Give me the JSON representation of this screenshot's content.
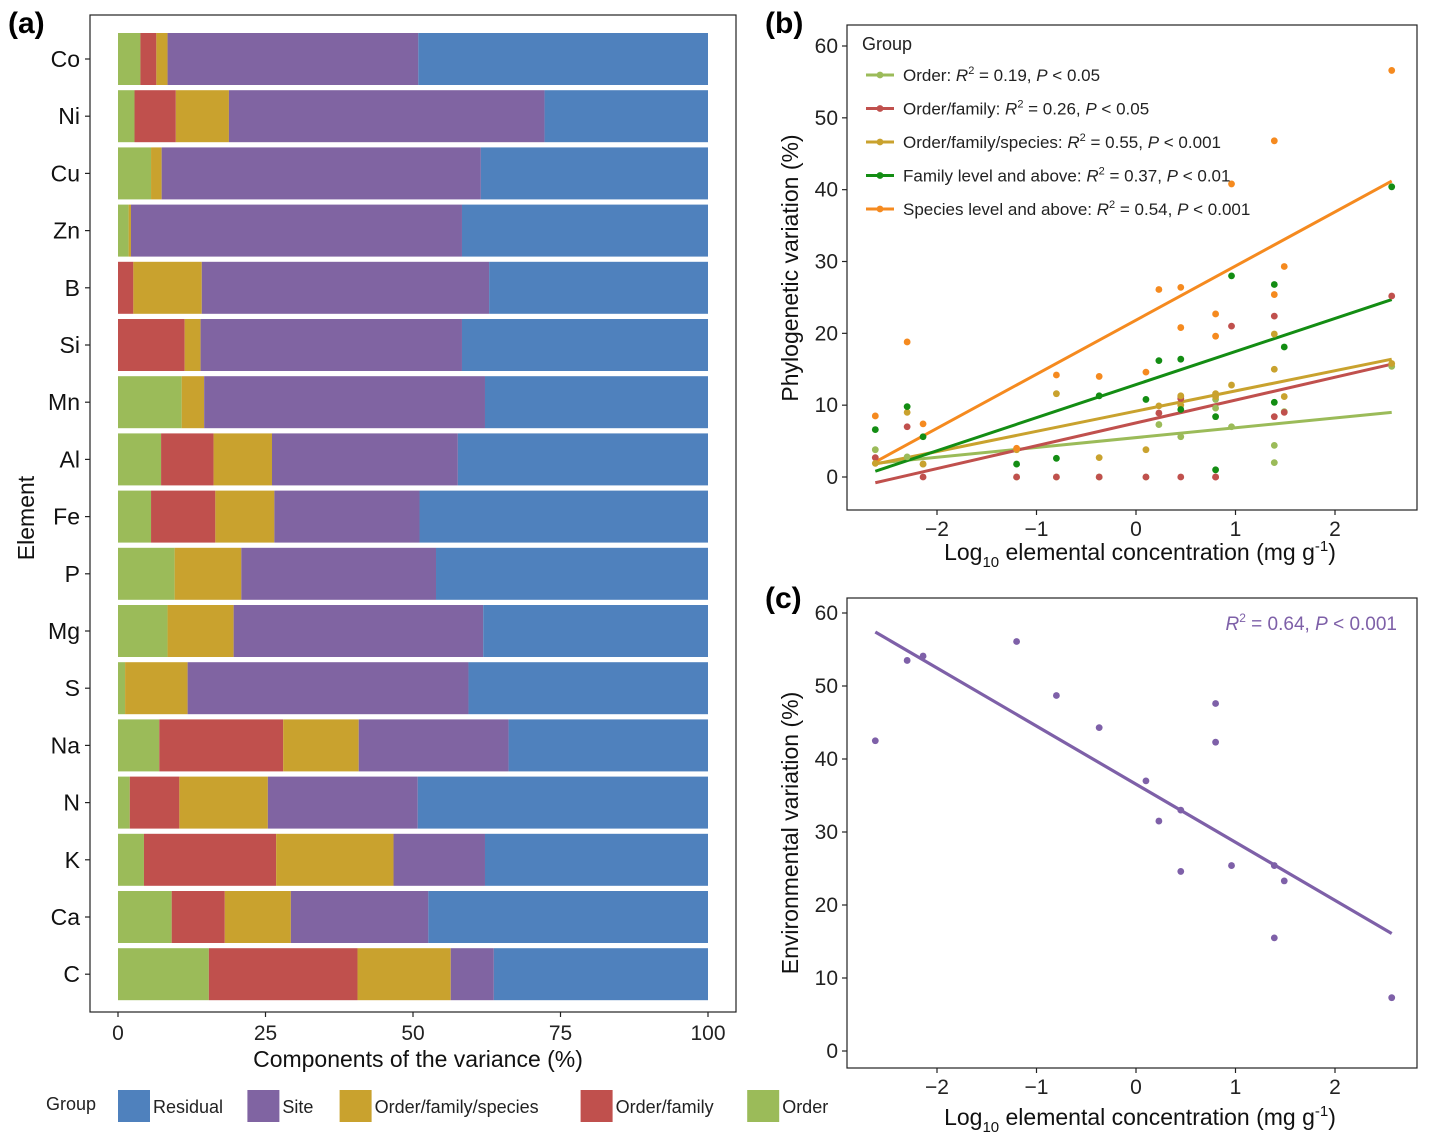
{
  "labels": {
    "panel_a": "(a)",
    "panel_b": "(b)",
    "panel_c": "(c)"
  },
  "colors": {
    "Residual": "#4f81bd",
    "Site": "#8064a2",
    "Order/family/species": "#c9a22e",
    "Order/family": "#c0504d",
    "Order": "#9bbb59",
    "fam_level": "#138d13",
    "sp_level": "#f58a1f",
    "env": "#7e60a8"
  },
  "chart_data": [
    {
      "type": "bar",
      "orientation": "horizontal",
      "stacked": true,
      "xlabel": "Components of the variance (%)",
      "ylabel": "Element",
      "xlim": [
        0,
        100
      ],
      "xticks": [
        0,
        25,
        50,
        75,
        100
      ],
      "categories": [
        "Co",
        "Ni",
        "Cu",
        "Zn",
        "B",
        "Si",
        "Mn",
        "Al",
        "Fe",
        "P",
        "Mg",
        "S",
        "Na",
        "N",
        "K",
        "Ca",
        "C"
      ],
      "legend_title": "Group",
      "legend_position": "bottom",
      "legend_order": [
        "Residual",
        "Site",
        "Order/family/species",
        "Order/family",
        "Order"
      ],
      "series": [
        {
          "name": "Order",
          "values": [
            3.8,
            2.8,
            5.6,
            1.8,
            0,
            0,
            10.8,
            7.3,
            5.6,
            9.6,
            8.4,
            1.2,
            7.0,
            2.0,
            4.4,
            9.1,
            15.4
          ]
        },
        {
          "name": "Order/family",
          "values": [
            2.7,
            7.0,
            0,
            0,
            2.6,
            11.3,
            0,
            8.9,
            10.9,
            0,
            0,
            0,
            21.0,
            8.4,
            22.4,
            9.0,
            25.2
          ]
        },
        {
          "name": "Order/family/species",
          "values": [
            1.9,
            9.0,
            1.8,
            0.4,
            11.6,
            2.7,
            3.8,
            9.9,
            10.0,
            11.3,
            11.2,
            10.6,
            12.8,
            15.0,
            19.9,
            11.2,
            15.8
          ]
        },
        {
          "name": "Site",
          "values": [
            42.5,
            53.5,
            54.1,
            56.1,
            48.7,
            44.3,
            47.6,
            31.5,
            24.6,
            33.0,
            42.3,
            47.6,
            25.4,
            25.4,
            15.5,
            23.3,
            7.3
          ]
        },
        {
          "name": "Residual",
          "values": [
            49.1,
            27.7,
            38.5,
            41.7,
            37.1,
            41.7,
            37.8,
            42.4,
            48.9,
            46.1,
            38.1,
            40.6,
            33.8,
            49.2,
            37.8,
            47.4,
            36.3
          ]
        }
      ]
    },
    {
      "type": "scatter",
      "xlabel_main": "Log",
      "xlabel_sub": "10",
      "xlabel_rest": " elemental concentration (mg g",
      "xlabel_sup": "-1",
      "xlabel_end": ")",
      "ylabel": "Phylogenetic variation (%)",
      "xlim": [
        -2.95,
        2.85
      ],
      "ylim": [
        -4,
        63
      ],
      "xticks": [
        -2,
        -1,
        0,
        1,
        2
      ],
      "yticks": [
        0,
        10,
        20,
        30,
        40,
        50,
        60
      ],
      "legend_title": "Group",
      "legend_position": "top-left",
      "x": [
        -2.62,
        -2.3,
        -2.14,
        -1.2,
        -0.8,
        -0.37,
        0.1,
        0.23,
        0.45,
        0.45,
        0.8,
        0.8,
        0.96,
        1.39,
        1.39,
        1.49,
        2.57
      ],
      "series": [
        {
          "name": "Order",
          "legend_label": "Order: ",
          "r2": "0.19",
          "p": "0.05",
          "p_op": "<",
          "color_key": "Order",
          "y": [
            3.8,
            2.8,
            1.8,
            0,
            0,
            0,
            0,
            7.3,
            5.6,
            11.2,
            9.6,
            10.8,
            7.0,
            2.0,
            4.4,
            9.1,
            15.4
          ],
          "line": [
            [
              -2.62,
              1.9
            ],
            [
              2.57,
              9.0
            ]
          ]
        },
        {
          "name": "Order/family",
          "legend_label": "Order/family: ",
          "r2": "0.26",
          "p": "0.05",
          "p_op": "<",
          "color_key": "Order/family",
          "y": [
            2.7,
            7.0,
            0,
            0,
            0,
            0,
            0,
            8.9,
            0,
            10.9,
            0,
            0,
            21.0,
            8.4,
            22.4,
            9.0,
            25.2
          ],
          "line": [
            [
              -2.62,
              -0.8
            ],
            [
              2.57,
              15.7
            ]
          ]
        },
        {
          "name": "Order/family/species",
          "legend_label": "Order/family/species: ",
          "r2": "0.55",
          "p": "0.001",
          "p_op": "<",
          "color_key": "Order/family/species",
          "y": [
            1.9,
            9.0,
            1.8,
            3.8,
            11.6,
            2.7,
            3.8,
            9.9,
            10.0,
            11.3,
            11.2,
            11.6,
            12.8,
            15.0,
            19.9,
            11.2,
            15.8
          ],
          "line": [
            [
              -2.62,
              1.8
            ],
            [
              2.57,
              16.4
            ]
          ]
        },
        {
          "name": "Family level and above",
          "legend_label": "Family level and above: ",
          "r2": "0.37",
          "p": "0.01",
          "p_op": "<",
          "color_key": "fam_level",
          "y": [
            6.6,
            9.8,
            5.6,
            1.8,
            2.6,
            11.3,
            10.8,
            16.2,
            16.4,
            9.4,
            8.4,
            1.0,
            28.0,
            10.4,
            26.8,
            18.1,
            40.4
          ],
          "line": [
            [
              -2.62,
              0.8
            ],
            [
              2.57,
              24.7
            ]
          ]
        },
        {
          "name": "Species level and above",
          "legend_label": "Species level and above: ",
          "r2": "0.54",
          "p": "0.001",
          "p_op": "<",
          "color_key": "sp_level",
          "y": [
            8.5,
            18.8,
            7.4,
            4.0,
            14.2,
            14.0,
            14.6,
            26.1,
            26.4,
            20.8,
            19.6,
            22.7,
            40.8,
            46.8,
            25.4,
            29.3,
            56.6
          ],
          "line": [
            [
              -2.62,
              2.1
            ],
            [
              2.57,
              41.2
            ]
          ]
        }
      ]
    },
    {
      "type": "scatter",
      "xlabel_main": "Log",
      "xlabel_sub": "10",
      "xlabel_rest": " elemental concentration (mg g",
      "xlabel_sup": "-1",
      "xlabel_end": ")",
      "ylabel": "Environmental variation (%)",
      "xlim": [
        -2.95,
        2.85
      ],
      "ylim": [
        -4,
        63
      ],
      "xticks": [
        -2,
        -1,
        0,
        1,
        2
      ],
      "yticks": [
        0,
        10,
        20,
        30,
        40,
        50,
        60
      ],
      "annotation": {
        "r2": "0.64",
        "p": "0.001",
        "p_op": "<"
      },
      "x": [
        -2.62,
        -2.3,
        -2.14,
        -1.2,
        -0.8,
        -0.37,
        0.1,
        0.23,
        0.45,
        0.45,
        0.8,
        0.8,
        0.96,
        1.39,
        1.39,
        1.49,
        2.57
      ],
      "y": [
        42.5,
        53.5,
        54.1,
        56.1,
        48.7,
        44.3,
        37.0,
        31.5,
        24.6,
        33.0,
        42.3,
        47.6,
        25.4,
        25.4,
        15.5,
        23.3,
        7.3
      ],
      "line": [
        [
          -2.62,
          57.4
        ],
        [
          2.57,
          16.1
        ]
      ]
    }
  ]
}
